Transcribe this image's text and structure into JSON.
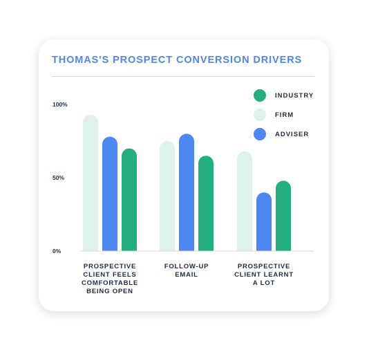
{
  "chart_data": {
    "type": "bar",
    "title": "THOMAS'S PROSPECT CONVERSION DRIVERS",
    "categories": [
      [
        "PROSPECTIVE",
        "CLIENT FEELS",
        "COMFORTABLE",
        "BEING OPEN"
      ],
      [
        "FOLLOW-UP",
        "EMAIL"
      ],
      [
        "PROSPECTIVE",
        "CLIENT LEARNT",
        "A LOT"
      ]
    ],
    "series": [
      {
        "name": "FIRM",
        "color": "#dff2ea",
        "values": [
          93,
          75,
          68
        ]
      },
      {
        "name": "ADVISER",
        "color": "#4d87f1",
        "values": [
          78,
          80,
          40
        ]
      },
      {
        "name": "INDUSTRY",
        "color": "#23ae82",
        "values": [
          70,
          65,
          48
        ]
      }
    ],
    "legend_order": [
      "INDUSTRY",
      "FIRM",
      "ADVISER"
    ],
    "ytick_labels": [
      "100%",
      "50%",
      "0%"
    ],
    "yticks": [
      100,
      50,
      0
    ],
    "ylim": [
      0,
      100
    ],
    "legend_position": "top-right",
    "grid": false
  }
}
